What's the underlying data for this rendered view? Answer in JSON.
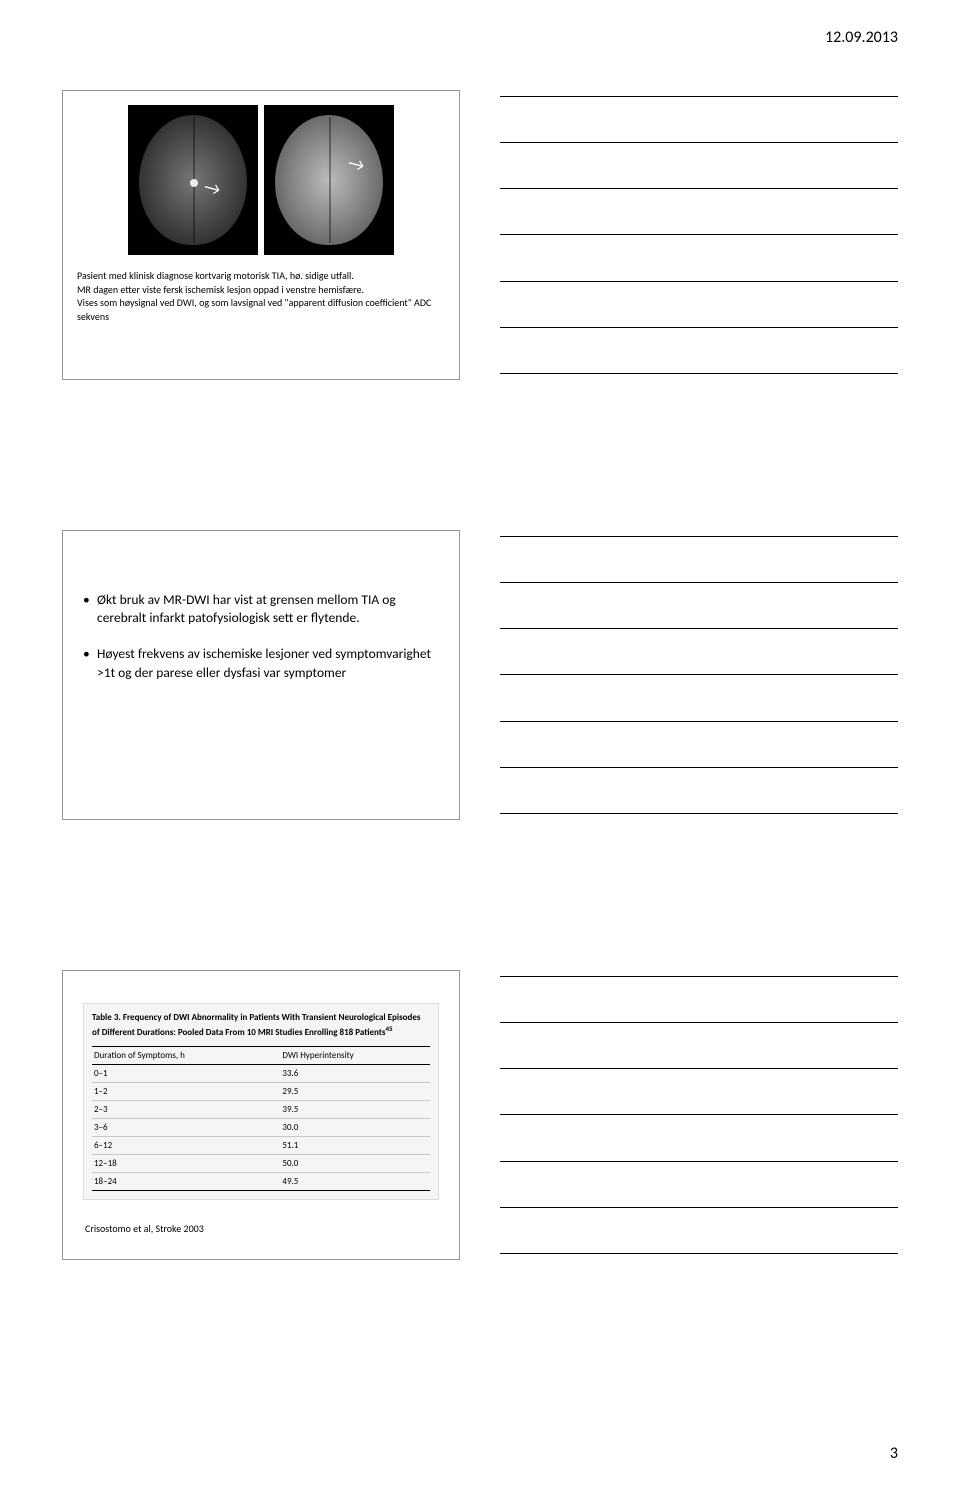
{
  "header": {
    "date": "12.09.2013"
  },
  "footer": {
    "page": "3"
  },
  "slide1": {
    "caption_line1": "Pasient med klinisk diagnose kortvarig motorisk TIA, hø. sidige utfall.",
    "caption_line2": "MR dagen etter viste fersk ischemisk lesjon oppad i venstre hemisfære.",
    "caption_line3": "Vises som høysignal ved DWI, og som lavsignal ved \"apparent diffusion coefficient\" ADC sekvens"
  },
  "slide2": {
    "bullet1": "Økt bruk av MR-DWI har vist at grensen mellom TIA og cerebralt infarkt patofysiologisk sett er flytende.",
    "bullet2": "Høyest frekvens av ischemiske lesjoner ved symptomvarighet >1t og der parese eller dysfasi var symptomer"
  },
  "slide3": {
    "table": {
      "type": "table",
      "title_prefix": "Table 3.",
      "title_rest": " Frequency of DWI Abnormality in Patients With Transient Neurological Episodes of Different Durations: Pooled Data From 10 MRI Studies Enrolling 818 Patients",
      "title_sup": "45",
      "columns": [
        "Duration of Symptoms, h",
        "DWI Hyperintensity"
      ],
      "rows": [
        [
          "0–1",
          "33.6"
        ],
        [
          "1–2",
          "29.5"
        ],
        [
          "2–3",
          "39.5"
        ],
        [
          "3–6",
          "30.0"
        ],
        [
          "6–12",
          "51.1"
        ],
        [
          "12–18",
          "50.0"
        ],
        [
          "18–24",
          "49.5"
        ]
      ],
      "background_color": "#f5f5f3",
      "border_color": "#c8c8c8",
      "header_border_color": "#000000",
      "font_size_pt": 7,
      "col2_align": "left"
    },
    "citation": "Crisostomo et al, Stroke 2003"
  },
  "notes": {
    "lines_per_block": 7
  },
  "colors": {
    "page_bg": "#ffffff",
    "slide_border": "#969696",
    "note_line": "#000000",
    "text": "#000000"
  }
}
